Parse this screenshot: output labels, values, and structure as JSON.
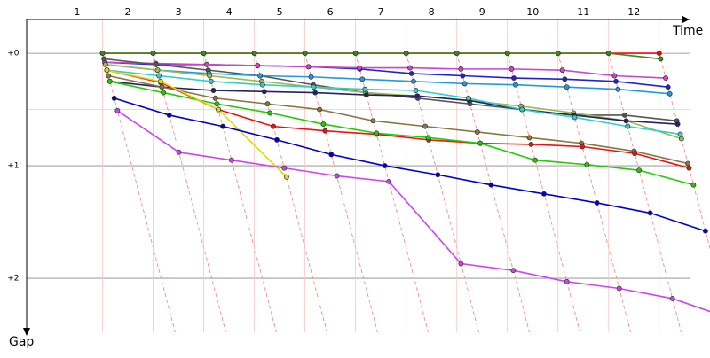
{
  "chart_data": {
    "type": "lap-gap",
    "x_label": "Time",
    "y_label": "Gap",
    "xlim": [
      0,
      13.1
    ],
    "xticks": [
      1,
      2,
      3,
      4,
      5,
      6,
      7,
      8,
      9,
      10,
      11,
      12
    ],
    "ylim": [
      -0.3,
      2.48
    ],
    "yticks": [
      {
        "value": 0,
        "label": "+0'"
      },
      {
        "value": 1,
        "label": "+1'"
      },
      {
        "value": 2,
        "label": "+2'"
      }
    ],
    "y_minor_grid": [
      0.5,
      1.5
    ],
    "grid": true,
    "series": [
      {
        "color": "#ff0000",
        "values": [
          0,
          0,
          0,
          0,
          0,
          0,
          0,
          0,
          0,
          0,
          0,
          0
        ]
      },
      {
        "color": "#3a8a1a",
        "values": [
          0,
          0,
          0,
          0,
          0,
          0,
          0,
          0,
          0,
          0,
          0,
          0.05
        ]
      },
      {
        "color": "#2222cc",
        "values": [
          0.08,
          0.1,
          0.1,
          0.11,
          0.12,
          0.14,
          0.18,
          0.2,
          0.22,
          0.23,
          0.25,
          0.3
        ]
      },
      {
        "color": "#cc44cc",
        "values": [
          0.08,
          0.09,
          0.1,
          0.11,
          0.12,
          0.13,
          0.13,
          0.14,
          0.14,
          0.15,
          0.2,
          0.22
        ]
      },
      {
        "color": "#555555",
        "values": [
          0.05,
          0.1,
          0.15,
          0.2,
          0.28,
          0.35,
          0.4,
          0.45,
          0.5,
          0.55,
          0.55,
          0.6
        ]
      },
      {
        "color": "#2299dd",
        "values": [
          0.1,
          0.15,
          0.18,
          0.2,
          0.21,
          0.23,
          0.25,
          0.27,
          0.28,
          0.3,
          0.32,
          0.36
        ]
      },
      {
        "color": "#99bb55",
        "values": [
          0.1,
          0.15,
          0.2,
          0.25,
          0.3,
          0.35,
          0.38,
          0.42,
          0.47,
          0.53,
          0.6,
          0.76
        ]
      },
      {
        "color": "#222266",
        "values": [
          0.25,
          0.3,
          0.33,
          0.34,
          0.35,
          0.37,
          0.38,
          0.42,
          0.5,
          0.55,
          0.6,
          0.63
        ]
      },
      {
        "color": "#33cccc",
        "values": [
          0.15,
          0.2,
          0.25,
          0.28,
          0.3,
          0.32,
          0.33,
          0.4,
          0.5,
          0.57,
          0.65,
          0.72
        ]
      },
      {
        "color": "#887744",
        "values": [
          0.2,
          0.3,
          0.4,
          0.45,
          0.5,
          0.6,
          0.65,
          0.7,
          0.75,
          0.8,
          0.87,
          0.98
        ]
      },
      {
        "color": "#ee1111",
        "values": [
          0.15,
          0.26,
          0.5,
          0.65,
          0.69,
          0.72,
          0.77,
          0.8,
          0.81,
          0.83,
          0.89,
          1.02
        ]
      },
      {
        "color": "#22cc00",
        "values": [
          0.25,
          0.35,
          0.45,
          0.53,
          0.63,
          0.71,
          0.75,
          0.8,
          0.95,
          0.99,
          1.04,
          1.17
        ]
      },
      {
        "color": "#dddd00",
        "values": [
          0.15,
          0.25,
          0.5,
          1.1,
          null,
          null,
          null,
          null,
          null,
          null,
          null,
          null
        ]
      },
      {
        "color": "#0000cc",
        "values": [
          0.4,
          0.55,
          0.65,
          0.77,
          0.9,
          1.0,
          1.08,
          1.17,
          1.25,
          1.33,
          1.42,
          1.58
        ]
      },
      {
        "color": "#cc44ee",
        "values": [
          0.51,
          0.88,
          0.95,
          1.02,
          1.09,
          1.14,
          1.87,
          1.93,
          2.03,
          2.09,
          2.18,
          2.35
        ]
      }
    ]
  }
}
